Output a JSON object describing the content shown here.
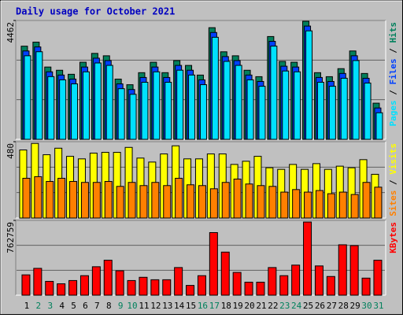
{
  "chart_data": [
    {
      "type": "bar",
      "title": "Daily usage for October 2021",
      "ylim": [
        0,
        4462
      ],
      "yticks": [
        4462
      ],
      "grid": true,
      "series": [
        {
          "name": "Hits",
          "color": "#00805c",
          "values": [
            3497,
            3648,
            2714,
            2593,
            2442,
            2894,
            3226,
            3136,
            2261,
            2050,
            2502,
            2894,
            2502,
            2955,
            2774,
            2412,
            4191,
            3286,
            3136,
            2593,
            2352,
            3859,
            2925,
            2894,
            4432,
            2502,
            2352,
            2653,
            3317,
            2472,
            1357
          ]
        },
        {
          "name": "Files",
          "color": "#0040ff",
          "values": [
            3317,
            3468,
            2534,
            2413,
            2262,
            2714,
            3046,
            2956,
            2081,
            1870,
            2322,
            2714,
            2322,
            2775,
            2594,
            2232,
            4011,
            3106,
            2956,
            2413,
            2172,
            3679,
            2745,
            2714,
            4252,
            2322,
            2172,
            2473,
            3137,
            2292,
            1177
          ]
        },
        {
          "name": "Pages",
          "color": "#00e0ff",
          "values": [
            3137,
            3288,
            2354,
            2233,
            2082,
            2534,
            2866,
            2776,
            1901,
            1690,
            2142,
            2534,
            2142,
            2595,
            2414,
            2052,
            3831,
            2926,
            2776,
            2233,
            1992,
            3499,
            2565,
            2534,
            4072,
            2142,
            1992,
            2293,
            2957,
            2112,
            997
          ]
        }
      ]
    },
    {
      "type": "bar",
      "ylim": [
        0,
        480
      ],
      "yticks": [
        480
      ],
      "grid": true,
      "series": [
        {
          "name": "Visits",
          "color": "#ffff00",
          "values": [
            428,
            469,
            398,
            439,
            388,
            372,
            408,
            413,
            413,
            444,
            377,
            352,
            403,
            454,
            372,
            372,
            403,
            403,
            337,
            357,
            388,
            316,
            306,
            337,
            306,
            342,
            306,
            326,
            316,
            367,
            275
          ]
        },
        {
          "name": "Sites",
          "color": "#ff8000",
          "values": [
            250,
            260,
            230,
            250,
            230,
            224,
            224,
            230,
            199,
            224,
            204,
            224,
            204,
            250,
            209,
            204,
            184,
            224,
            245,
            214,
            204,
            199,
            163,
            179,
            163,
            173,
            153,
            163,
            148,
            224,
            194
          ]
        }
      ]
    },
    {
      "type": "bar",
      "ylim": [
        0,
        762759
      ],
      "yticks": [
        762759
      ],
      "grid": true,
      "categories": [
        "1",
        "2",
        "3",
        "4",
        "5",
        "6",
        "7",
        "8",
        "9",
        "10",
        "11",
        "12",
        "13",
        "14",
        "15",
        "16",
        "17",
        "18",
        "19",
        "20",
        "21",
        "22",
        "23",
        "24",
        "25",
        "26",
        "27",
        "28",
        "29",
        "30",
        "31"
      ],
      "category_colors": [
        "#000000",
        "#00805c",
        "#00805c",
        "#000000",
        "#000000",
        "#000000",
        "#000000",
        "#000000",
        "#00805c",
        "#00805c",
        "#000000",
        "#000000",
        "#000000",
        "#000000",
        "#000000",
        "#00805c",
        "#00805c",
        "#000000",
        "#000000",
        "#000000",
        "#000000",
        "#000000",
        "#00805c",
        "#00805c",
        "#000000",
        "#000000",
        "#000000",
        "#000000",
        "#000000",
        "#00805c",
        "#00805c"
      ],
      "series": [
        {
          "name": "KBytes",
          "color": "#ff0000",
          "values": [
            207275,
            273603,
            140947,
            116074,
            149238,
            198984,
            290185,
            356513,
            248730,
            149238,
            182402,
            157529,
            157529,
            281894,
            99492,
            198984,
            638407,
            439423,
            232148,
            132656,
            132656,
            281894,
            198984,
            306767,
            746190,
            298476,
            190693,
            514042,
            505751,
            174111,
            356513
          ]
        }
      ]
    }
  ]
}
